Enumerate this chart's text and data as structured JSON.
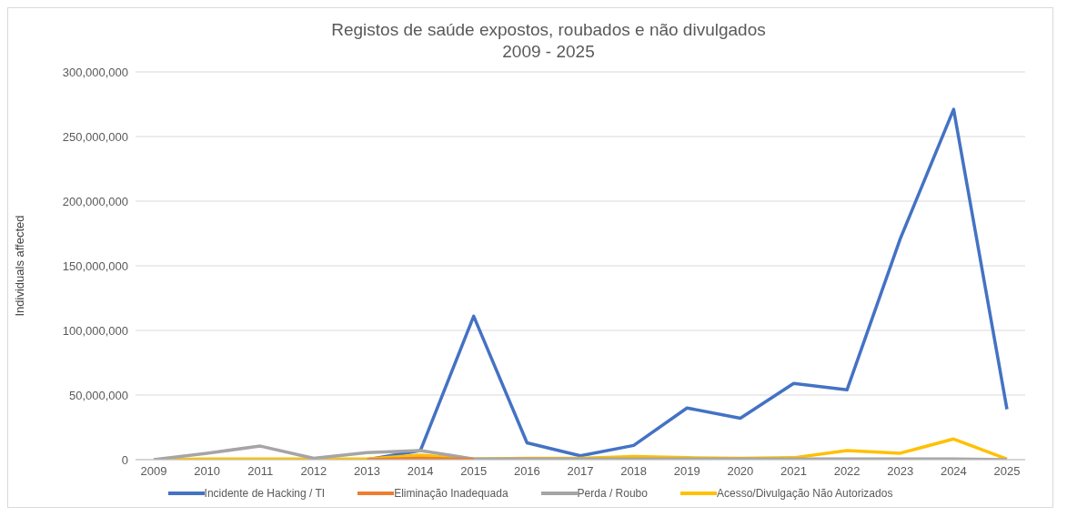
{
  "chart_data": {
    "type": "line",
    "title": "Registos de saúde expostos, roubados e não divulgados",
    "subtitle": "2009 - 2025",
    "ylabel": "Individuals affected",
    "categories": [
      "2009",
      "2010",
      "2011",
      "2012",
      "2013",
      "2014",
      "2015",
      "2016",
      "2017",
      "2018",
      "2019",
      "2020",
      "2021",
      "2022",
      "2023",
      "2024",
      "2025"
    ],
    "series": [
      {
        "name": "Incidente de Hacking / TI",
        "color": "#4472c4",
        "values": [
          null,
          null,
          null,
          null,
          0,
          7000000,
          111000000,
          13000000,
          3000000,
          11000000,
          40000000,
          32000000,
          59000000,
          54000000,
          171000000,
          271000000,
          39000000
        ]
      },
      {
        "name": "Eliminação Inadequada",
        "color": "#ed7d31",
        "values": [
          null,
          null,
          null,
          null,
          0,
          1000000,
          200000,
          null,
          null,
          null,
          null,
          null,
          null,
          null,
          null,
          null,
          null
        ]
      },
      {
        "name": "Perda / Roubo",
        "color": "#a5a5a5",
        "values": [
          0,
          5000000,
          10500000,
          1000000,
          5500000,
          7000000,
          500000,
          500000,
          500000,
          500000,
          500000,
          500000,
          500000,
          500000,
          500000,
          500000,
          0
        ]
      },
      {
        "name": "Acesso/Divulgação Não Autorizados",
        "color": "#ffc000",
        "values": [
          0,
          500000,
          500000,
          500000,
          500000,
          3500000,
          500000,
          1000000,
          1000000,
          2500000,
          1500000,
          1000000,
          1500000,
          7000000,
          5000000,
          16000000,
          500000
        ]
      }
    ],
    "ylim": [
      0,
      300000000
    ],
    "yticks": [
      {
        "value": 0,
        "label": "0"
      },
      {
        "value": 50000000,
        "label": "50,000,000"
      },
      {
        "value": 100000000,
        "label": "100,000,000"
      },
      {
        "value": 150000000,
        "label": "150,000,000"
      },
      {
        "value": 200000000,
        "label": "200,000,000"
      },
      {
        "value": 250000000,
        "label": "250,000,000"
      },
      {
        "value": 300000000,
        "label": "300,000,000"
      }
    ],
    "grid": "y",
    "legend": "bottom",
    "marker": "none",
    "line_style": "solid"
  }
}
